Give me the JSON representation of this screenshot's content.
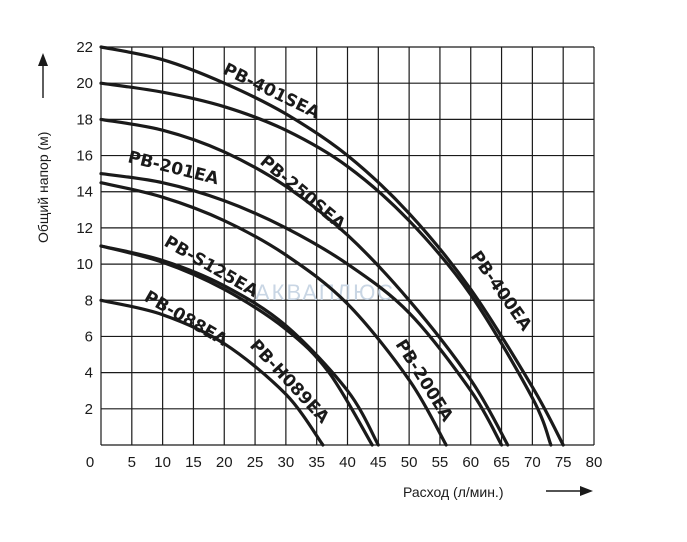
{
  "chart_data": {
    "type": "line",
    "xlabel": "Расход (л/мин.)",
    "ylabel": "Общий напор (м)",
    "xlim": [
      0,
      80
    ],
    "ylim": [
      0,
      22
    ],
    "xticks": [
      "0",
      "5",
      "10",
      "15",
      "20",
      "25",
      "30",
      "35",
      "40",
      "45",
      "50",
      "55",
      "60",
      "65",
      "70",
      "75",
      "80"
    ],
    "yticks": [
      "2",
      "4",
      "6",
      "8",
      "10",
      "12",
      "14",
      "16",
      "18",
      "20",
      "22"
    ],
    "grid": true,
    "watermark": "АКВАПЛЮС",
    "series": [
      {
        "name": "PB-401SEA",
        "x": [
          0,
          10,
          20,
          30,
          40,
          50,
          60,
          70,
          75
        ],
        "y": [
          22,
          21.3,
          20,
          18.3,
          16,
          12.8,
          8.6,
          3.2,
          0
        ]
      },
      {
        "name": "PB-400EA",
        "x": [
          0,
          10,
          20,
          30,
          40,
          50,
          60,
          70,
          73
        ],
        "y": [
          20,
          19.5,
          18.7,
          17.4,
          15.4,
          12.4,
          8.3,
          2.6,
          0
        ]
      },
      {
        "name": "PB-250SEA",
        "x": [
          0,
          10,
          20,
          30,
          40,
          50,
          60,
          66
        ],
        "y": [
          18,
          17.4,
          16.2,
          14.3,
          11.6,
          8,
          3.6,
          0
        ]
      },
      {
        "name": "PB-201EA",
        "x": [
          0,
          10,
          20,
          30,
          40,
          50,
          60,
          65
        ],
        "y": [
          15,
          14.5,
          13.5,
          12,
          10,
          7.3,
          3,
          0
        ]
      },
      {
        "name": "PB-200EA",
        "x": [
          0,
          10,
          20,
          30,
          40,
          50,
          56
        ],
        "y": [
          14.5,
          13.7,
          12.4,
          10.5,
          7.8,
          3.6,
          0
        ]
      },
      {
        "name": "PB-S125EA",
        "x": [
          0,
          10,
          20,
          30,
          40,
          45
        ],
        "y": [
          11,
          10.2,
          8.8,
          6.6,
          3,
          0
        ]
      },
      {
        "name": "PB-H089EA",
        "x": [
          0,
          10,
          20,
          30,
          37,
          44
        ],
        "y": [
          11,
          10.1,
          8.6,
          6.4,
          4,
          0
        ]
      },
      {
        "name": "PB-088EA",
        "x": [
          0,
          10,
          20,
          30,
          36
        ],
        "y": [
          8,
          7.2,
          5.6,
          2.8,
          0
        ]
      }
    ],
    "labels": [
      {
        "text": "PB-401SEA",
        "series": "PB-401SEA"
      },
      {
        "text": "PB-400EA",
        "series": "PB-400EA"
      },
      {
        "text": "PB-250SEA",
        "series": "PB-250SEA"
      },
      {
        "text": "PB-201EA",
        "series": "PB-201EA"
      },
      {
        "text": "PB-200EA",
        "series": "PB-200EA"
      },
      {
        "text": "PB-S125EA",
        "series": "PB-S125EA"
      },
      {
        "text": "PB-H089EA",
        "series": "PB-H089EA"
      },
      {
        "text": "PB-088EA",
        "series": "PB-088EA"
      }
    ]
  }
}
